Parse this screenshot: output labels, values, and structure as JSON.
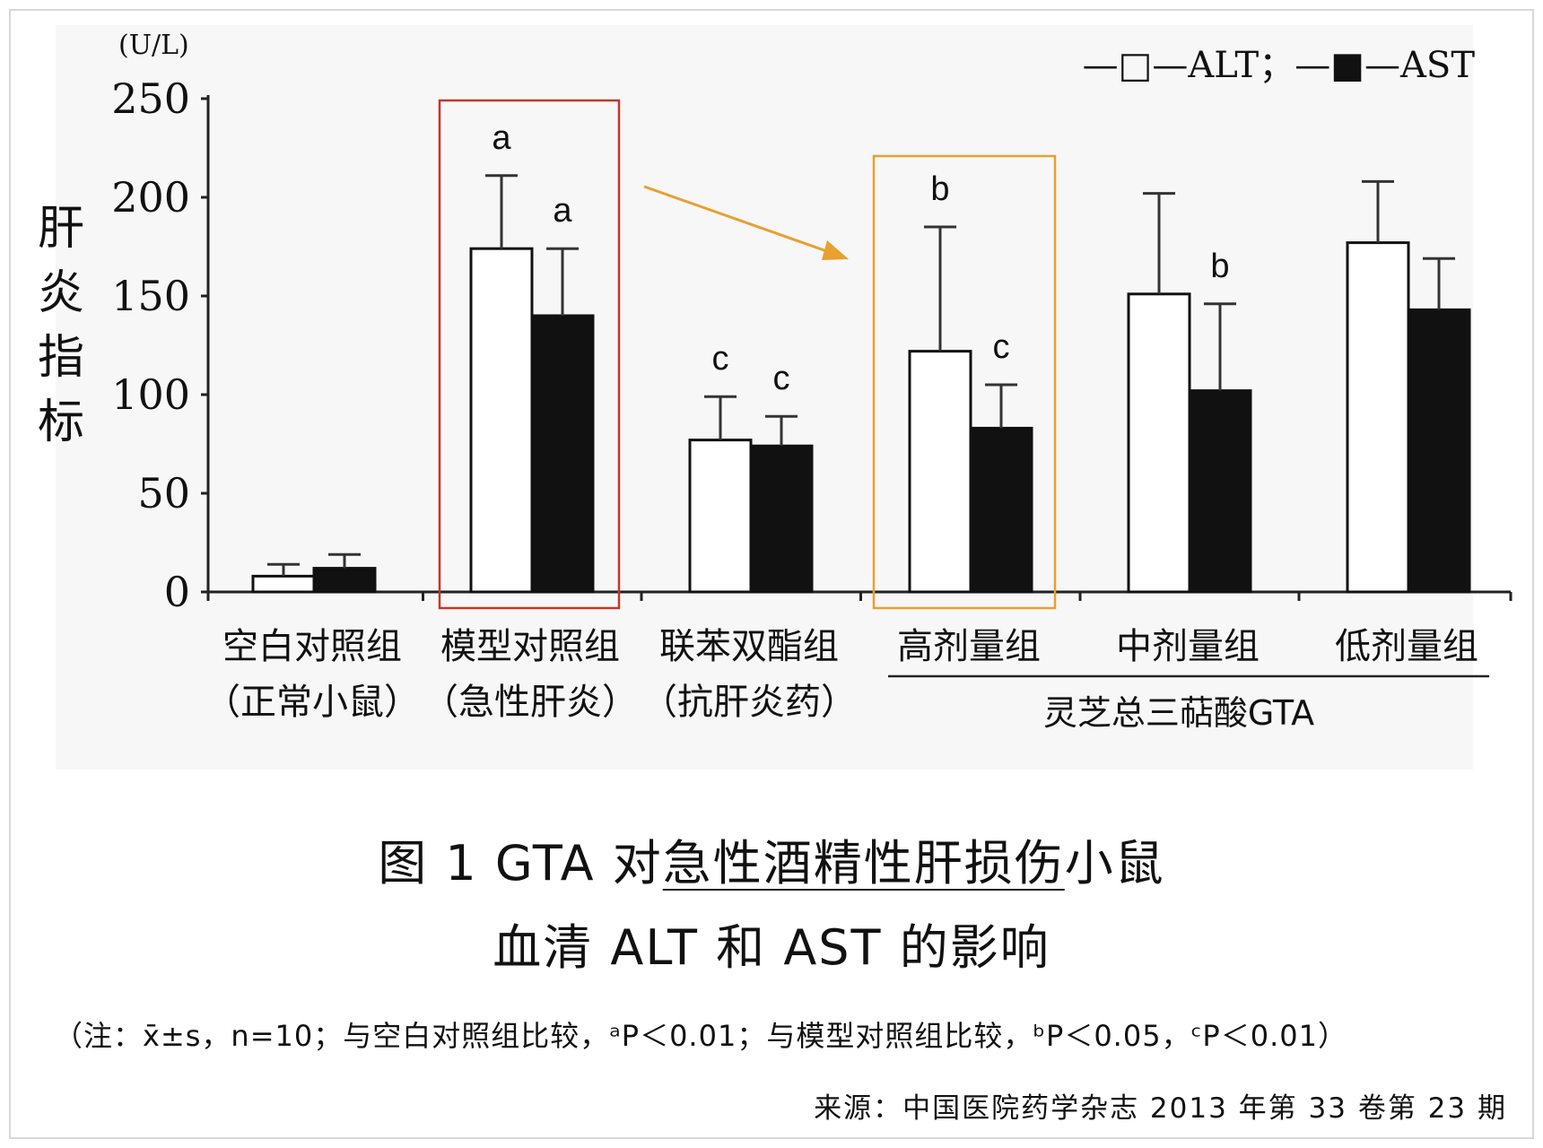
{
  "chart_data": {
    "type": "bar",
    "unit": "(U/L)",
    "ylabel": "肝炎指标",
    "ylim": [
      0,
      250
    ],
    "yticks": [
      0,
      50,
      100,
      150,
      200,
      250
    ],
    "categories": [
      {
        "line1": "空白对照组",
        "line2": "（正常小鼠）"
      },
      {
        "line1": "模型对照组",
        "line2": "（急性肝炎）"
      },
      {
        "line1": "联苯双酯组",
        "line2": "（抗肝炎药）"
      },
      {
        "line1": "高剂量组",
        "line2": ""
      },
      {
        "line1": "中剂量组",
        "line2": ""
      },
      {
        "line1": "低剂量组",
        "line2": ""
      }
    ],
    "series": [
      {
        "name": "ALT",
        "fill": "#ffffff",
        "values": [
          8,
          174,
          77,
          122,
          151,
          177
        ],
        "errors": [
          6,
          37,
          22,
          63,
          51,
          31
        ],
        "marks": [
          "",
          "a",
          "c",
          "b",
          "",
          ""
        ]
      },
      {
        "name": "AST",
        "fill": "#111111",
        "values": [
          12,
          140,
          74,
          83,
          102,
          143
        ],
        "errors": [
          7,
          34,
          15,
          22,
          44,
          26
        ],
        "marks": [
          "",
          "a",
          "c",
          "c",
          "b",
          ""
        ]
      }
    ],
    "legend": {
      "text": "—□—ALT；—■—AST",
      "position": "top-right"
    },
    "group_bracket_label": "灵芝总三萜酸GTA",
    "highlight_colors": {
      "model_box": "#c0392b",
      "high_dose_box": "#e8a030",
      "arrow": "#e8a030"
    },
    "grid": false
  },
  "caption": {
    "line1_a": "图 1 GTA 对",
    "line1_b": "急性酒精性肝损伤",
    "line1_c": "小鼠",
    "line2": "血清 ALT 和 AST 的影响"
  },
  "note": "（注：x̄±s，n=10；与空白对照组比较，ᵃP＜0.01；与模型对照组比较，ᵇP＜0.05，ᶜP＜0.01）",
  "source": "来源：中国医院药学杂志 2013 年第 33 卷第 23 期"
}
